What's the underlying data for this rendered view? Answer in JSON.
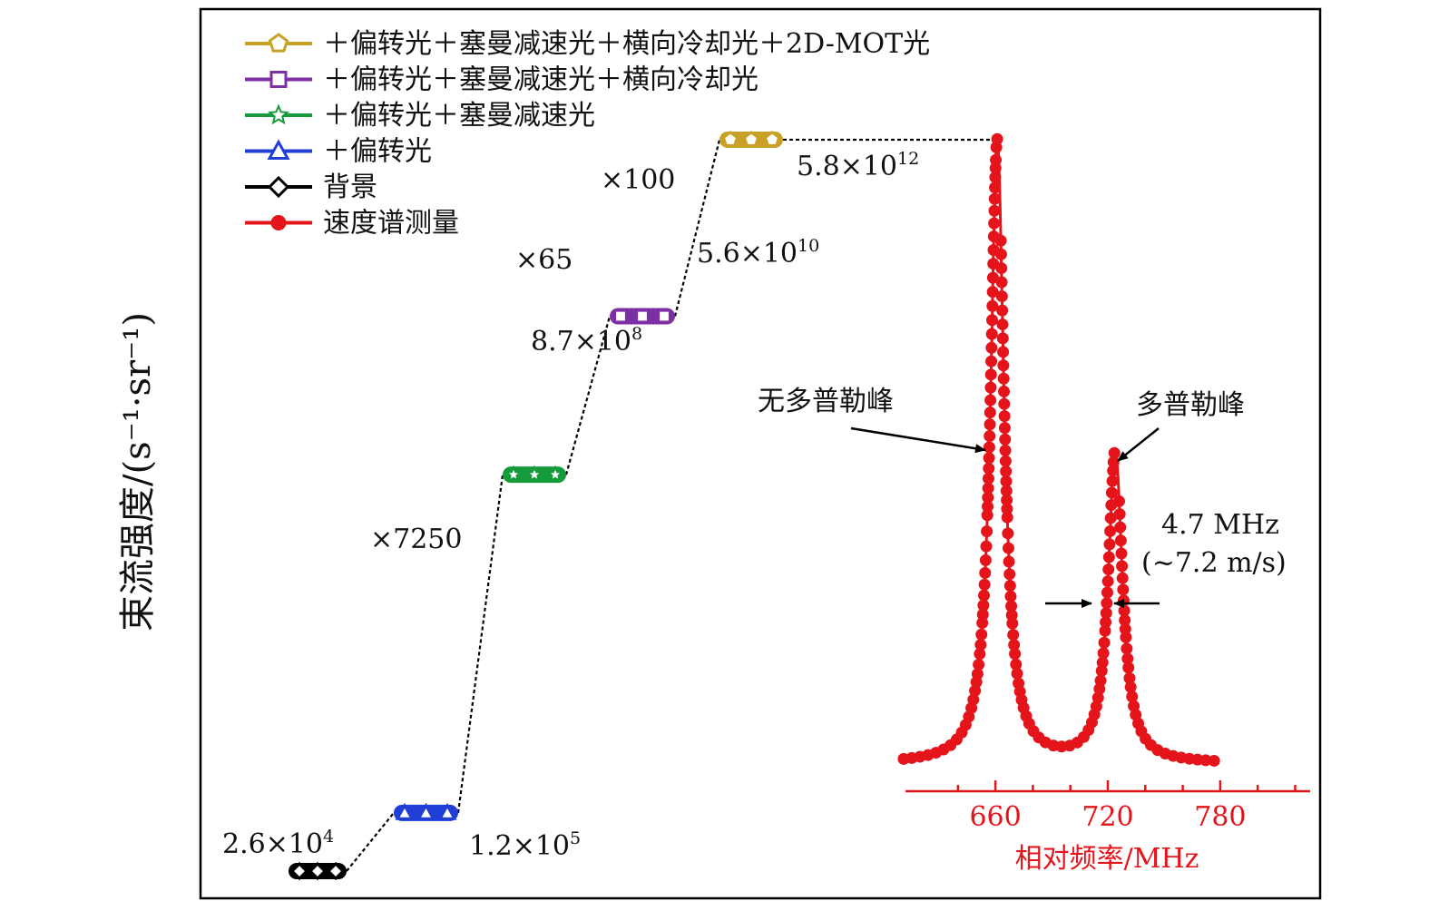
{
  "colors": {
    "background": "#000000",
    "plus_polarized": "#1f3fd6",
    "plus_zeeman": "#159a3c",
    "plus_transverse": "#7d2fa6",
    "plus_2dmot": "#c9a126",
    "spectrum": "#e5141b",
    "connector": "#111111"
  },
  "icons": {
    "background": "diamond",
    "plus_polarized": "triangle",
    "plus_zeeman": "star",
    "plus_transverse": "square",
    "plus_2dmot": "pentagon",
    "spectrum": "filled-circle"
  },
  "chart_data": [
    {
      "type": "scatter",
      "y_label": "束流强度/(s⁻¹·sr⁻¹)",
      "legend_position": "top-left",
      "series": [
        {
          "key": "plus_2dmot",
          "name": "＋偏转光＋塞曼减速光＋横向冷却光＋2D-MOT光",
          "value": "5.8×10¹²",
          "value_num": 5800000000000.0,
          "value_base": "5.8×10",
          "value_exp": "12"
        },
        {
          "key": "plus_transverse",
          "name": "＋偏转光＋塞曼减速光＋横向冷却光",
          "value": "5.6×10¹⁰",
          "value_num": 56000000000.0,
          "value_base": "5.6×10",
          "value_exp": "10"
        },
        {
          "key": "plus_zeeman",
          "name": "＋偏转光＋塞曼减速光",
          "value": "8.7×10⁸",
          "value_num": 870000000.0,
          "value_base": "8.7×10",
          "value_exp": "8"
        },
        {
          "key": "plus_polarized",
          "name": "＋偏转光",
          "value": "1.2×10⁵",
          "value_num": 120000.0,
          "value_base": "1.2×10",
          "value_exp": "5"
        },
        {
          "key": "background",
          "name": "背景",
          "value": "2.6×10⁴",
          "value_num": 26000.0,
          "value_base": "2.6×10",
          "value_exp": "4"
        },
        {
          "key": "spectrum",
          "name": "速度谱测量"
        }
      ],
      "step_factors": [
        "×7250",
        "×65",
        "×100"
      ]
    },
    {
      "type": "line",
      "series_name": "速度谱测量",
      "x_label": "相对频率/MHz",
      "x_ticks": [
        660,
        720,
        780
      ],
      "xlim": [
        612,
        828
      ],
      "peaks": [
        {
          "label": "无多普勒峰",
          "center_mhz": 661,
          "relative_height": 1.0,
          "fwhm_mhz": 4.7
        },
        {
          "label": "多普勒峰",
          "center_mhz": 724,
          "relative_height": 0.5,
          "fwhm_mhz": 4.7
        }
      ],
      "width_annotation": {
        "line1": "4.7 MHz",
        "line2": "(~7.2 m/s)"
      }
    }
  ]
}
